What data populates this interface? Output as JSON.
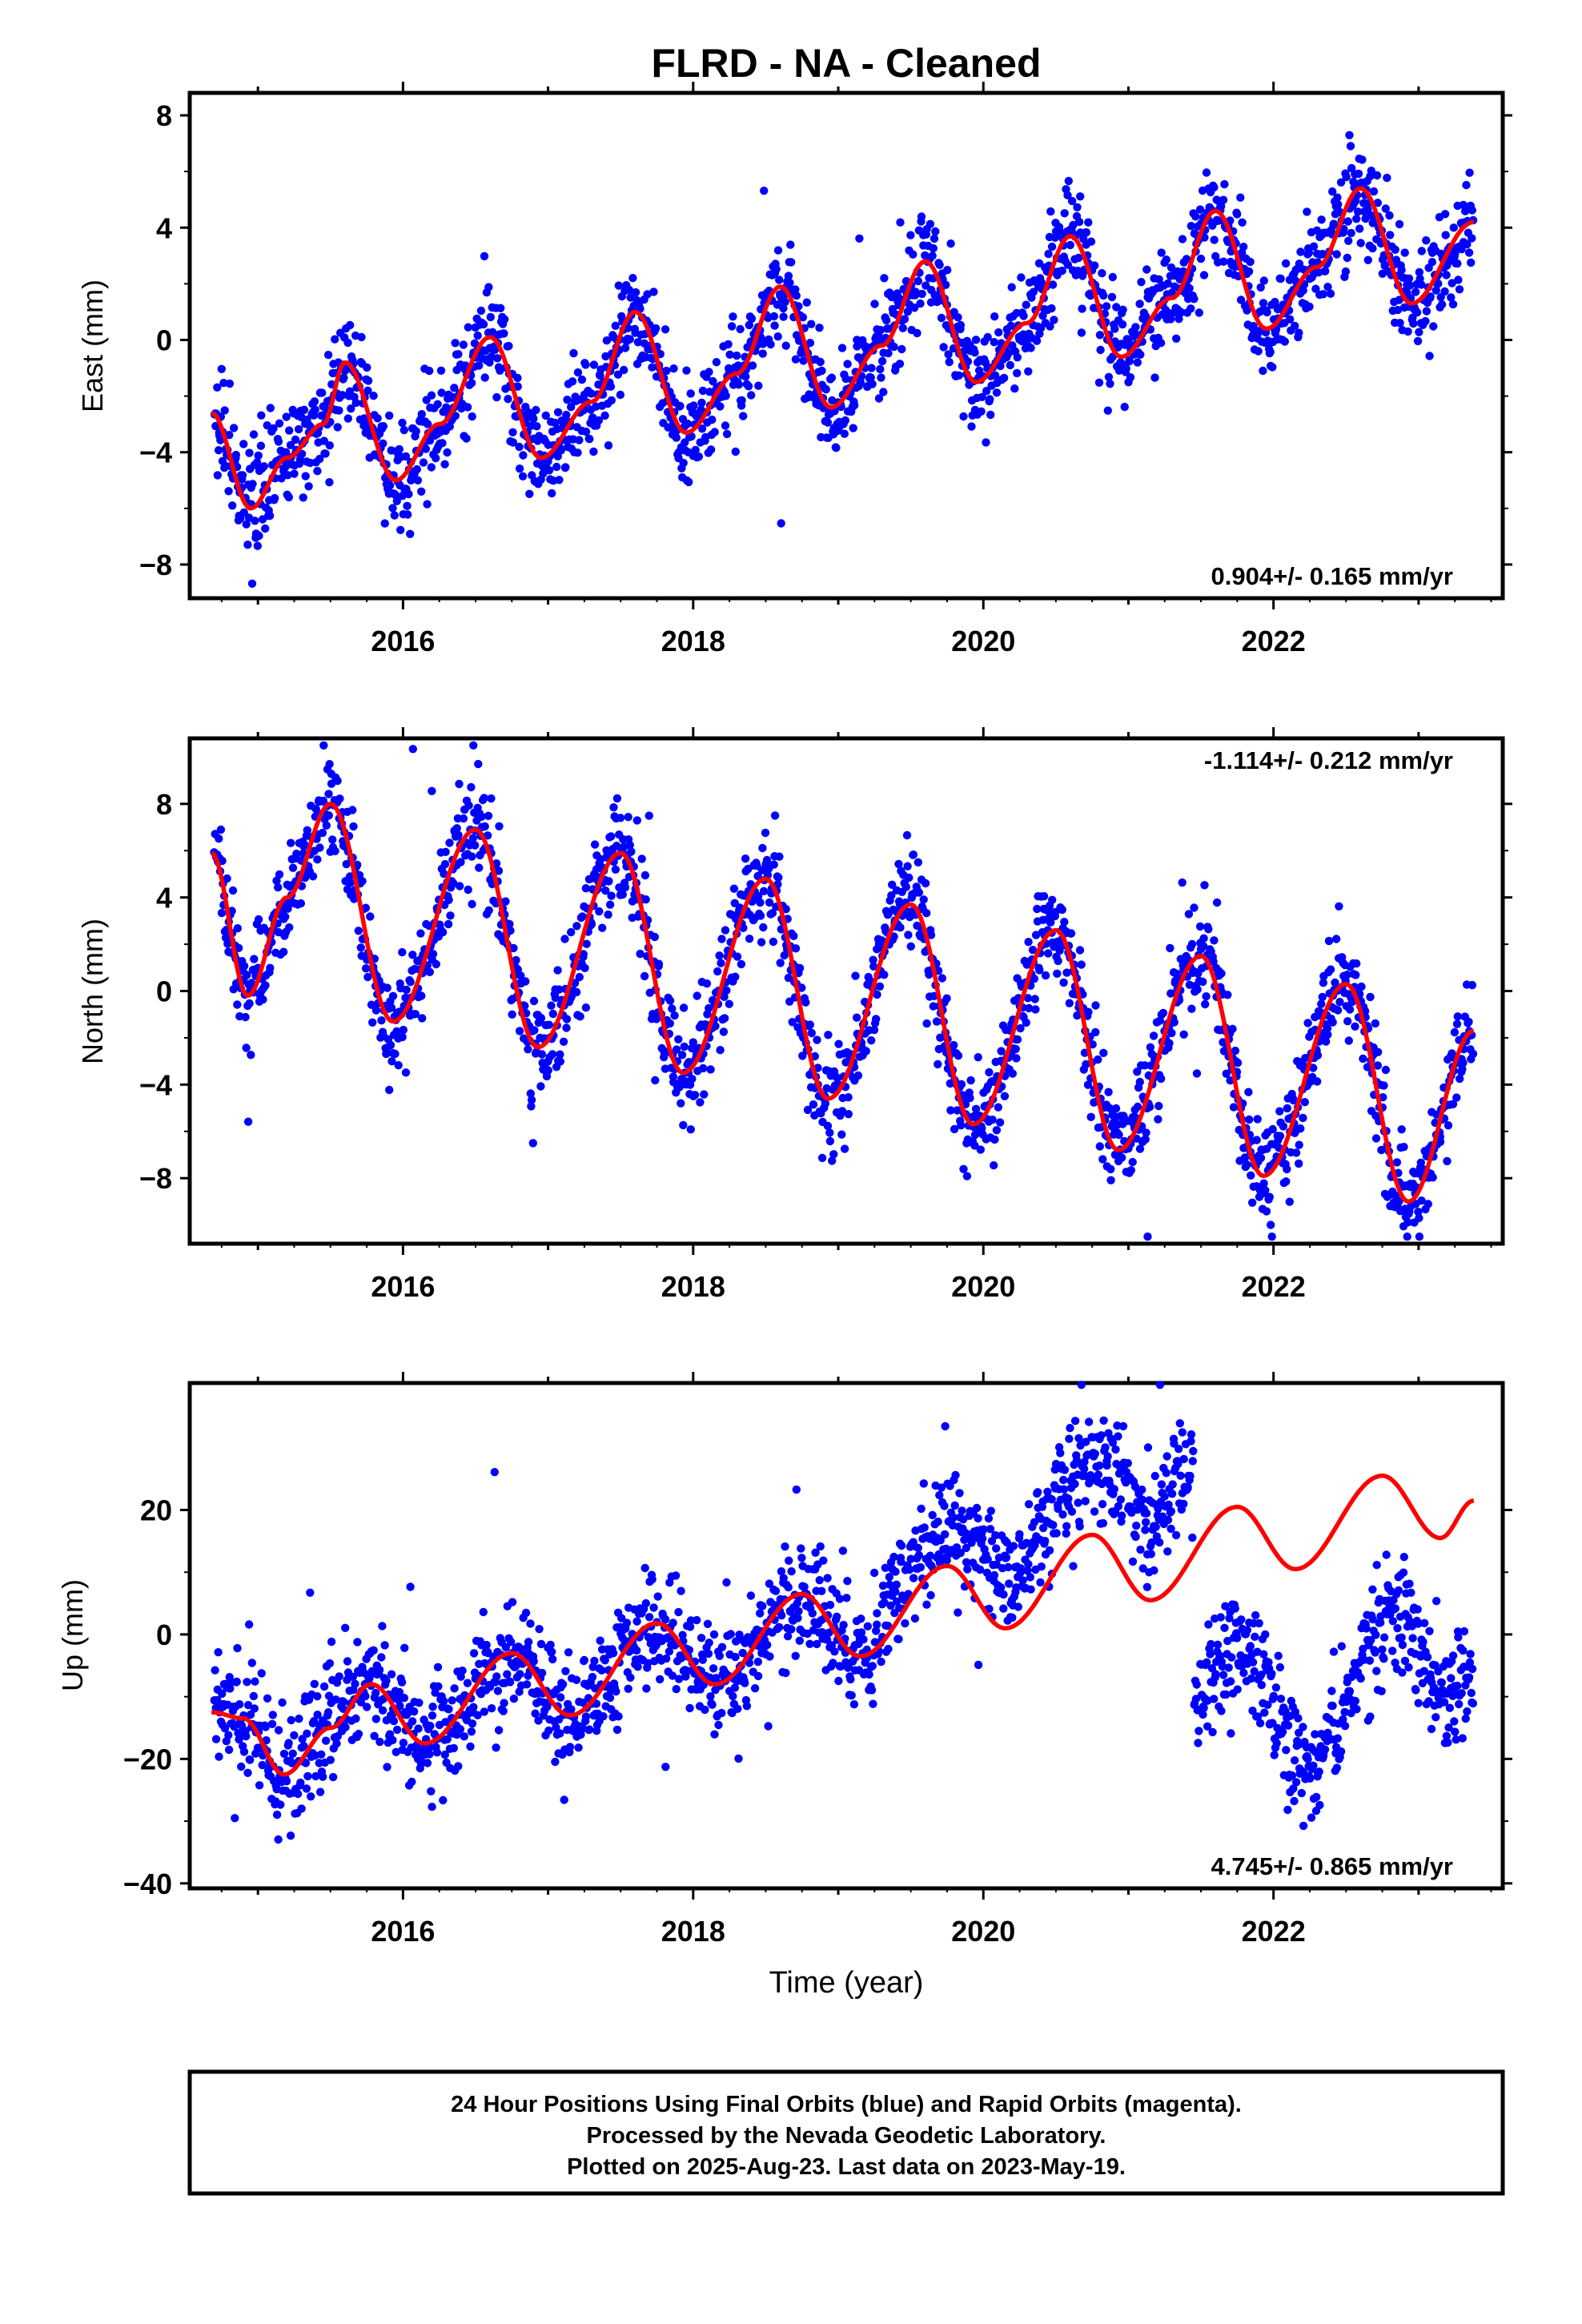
{
  "title": "FLRD  - NA - Cleaned",
  "colors": {
    "points": "#0000ff",
    "fit": "#ff0000",
    "frame": "#000000"
  },
  "chart_data": [
    {
      "type": "scatter",
      "id": "east",
      "ylabel": "East (mm)",
      "ylim": [
        -9.2,
        8.8
      ],
      "yticks": [
        -8,
        -4,
        0,
        4,
        8
      ],
      "xlim": [
        2014.53,
        2023.58
      ],
      "xticks": [
        2016,
        2018,
        2020,
        2022
      ],
      "rate": "0.904+/- 0.165 mm/yr",
      "rate_position": "bottom-right",
      "series": [
        {
          "kind": "points",
          "description_color": "blue",
          "x_start": 2014.7,
          "x_end": 2023.38,
          "seasonal_amplitude": 2.3,
          "scatter_sd": 0.9
        },
        {
          "kind": "fit",
          "x": [
            2014.68,
            2014.95,
            2015.2,
            2015.45,
            2015.6,
            2015.95,
            2016.25,
            2016.6,
            2016.95,
            2017.3,
            2017.6,
            2017.95,
            2018.3,
            2018.6,
            2018.95,
            2019.3,
            2019.6,
            2019.95,
            2020.3,
            2020.6,
            2020.95,
            2021.3,
            2021.6,
            2021.95,
            2022.3,
            2022.6,
            2022.95,
            2023.38
          ],
          "y": [
            -2.6,
            -6.0,
            -4.2,
            -3.0,
            -0.8,
            -5.0,
            -3.0,
            0.1,
            -4.2,
            -2.2,
            1.0,
            -3.3,
            -1.2,
            1.9,
            -2.4,
            -0.2,
            2.8,
            -1.5,
            0.6,
            3.7,
            -0.6,
            1.5,
            4.6,
            0.4,
            2.6,
            5.4,
            1.3,
            4.2
          ]
        }
      ]
    },
    {
      "type": "scatter",
      "id": "north",
      "ylabel": "North (mm)",
      "ylim": [
        -10.8,
        10.8
      ],
      "yticks": [
        -8,
        -4,
        0,
        4,
        8
      ],
      "xlim": [
        2014.53,
        2023.58
      ],
      "xticks": [
        2016,
        2018,
        2020,
        2022
      ],
      "rate": "-1.114+/- 0.212 mm/yr",
      "rate_position": "top-right",
      "series": [
        {
          "kind": "points",
          "description_color": "blue",
          "x_start": 2014.7,
          "x_end": 2023.38,
          "seasonal_amplitude": 4.3,
          "scatter_sd": 1.1
        },
        {
          "kind": "fit",
          "x": [
            2014.68,
            2014.93,
            2015.2,
            2015.5,
            2015.93,
            2016.5,
            2016.93,
            2017.5,
            2017.93,
            2018.5,
            2018.93,
            2019.5,
            2019.93,
            2020.5,
            2020.93,
            2021.5,
            2021.93,
            2022.5,
            2022.93,
            2023.38
          ],
          "y": [
            5.9,
            -0.2,
            4.0,
            8.0,
            -1.3,
            6.9,
            -2.4,
            5.9,
            -3.5,
            4.8,
            -4.6,
            3.7,
            -5.7,
            2.6,
            -6.8,
            1.5,
            -7.9,
            0.3,
            -9.0,
            -1.7
          ]
        }
      ]
    },
    {
      "type": "scatter",
      "id": "up",
      "ylabel": "Up (mm)",
      "ylim": [
        -40.8,
        40.4
      ],
      "yticks": [
        -40,
        -20,
        0,
        20
      ],
      "xlim": [
        2014.53,
        2023.58
      ],
      "xticks": [
        2016,
        2018,
        2020,
        2022
      ],
      "xlabel": "Time (year)",
      "rate": "4.745+/- 0.865 mm/yr",
      "rate_position": "bottom-right",
      "series": [
        {
          "kind": "points",
          "description_color": "blue",
          "x_start": 2014.7,
          "x_end": 2023.38,
          "seasonal_amplitude": 5.0,
          "scatter_sd": 4.5,
          "offset_after": 2021.45
        },
        {
          "kind": "fit",
          "x": [
            2014.68,
            2014.9,
            2015.18,
            2015.5,
            2015.78,
            2016.15,
            2016.75,
            2017.15,
            2017.75,
            2018.15,
            2018.75,
            2019.15,
            2019.75,
            2020.15,
            2020.75,
            2021.15,
            2021.75,
            2022.15,
            2022.75,
            2023.15,
            2023.38
          ],
          "y": [
            -12.5,
            -13.5,
            -22.5,
            -15.0,
            -8.0,
            -17.5,
            -3.0,
            -13.0,
            1.8,
            -8.0,
            6.5,
            -3.5,
            11.0,
            1.0,
            16.0,
            5.5,
            20.5,
            10.5,
            25.5,
            15.5,
            21.5
          ]
        }
      ]
    }
  ],
  "footer": {
    "lines": [
      "24 Hour Positions Using Final Orbits (blue) and Rapid Orbits (magenta).",
      "Processed by the Nevada Geodetic Laboratory.",
      "Plotted on 2025-Aug-23. Last data on 2023-May-19."
    ]
  }
}
